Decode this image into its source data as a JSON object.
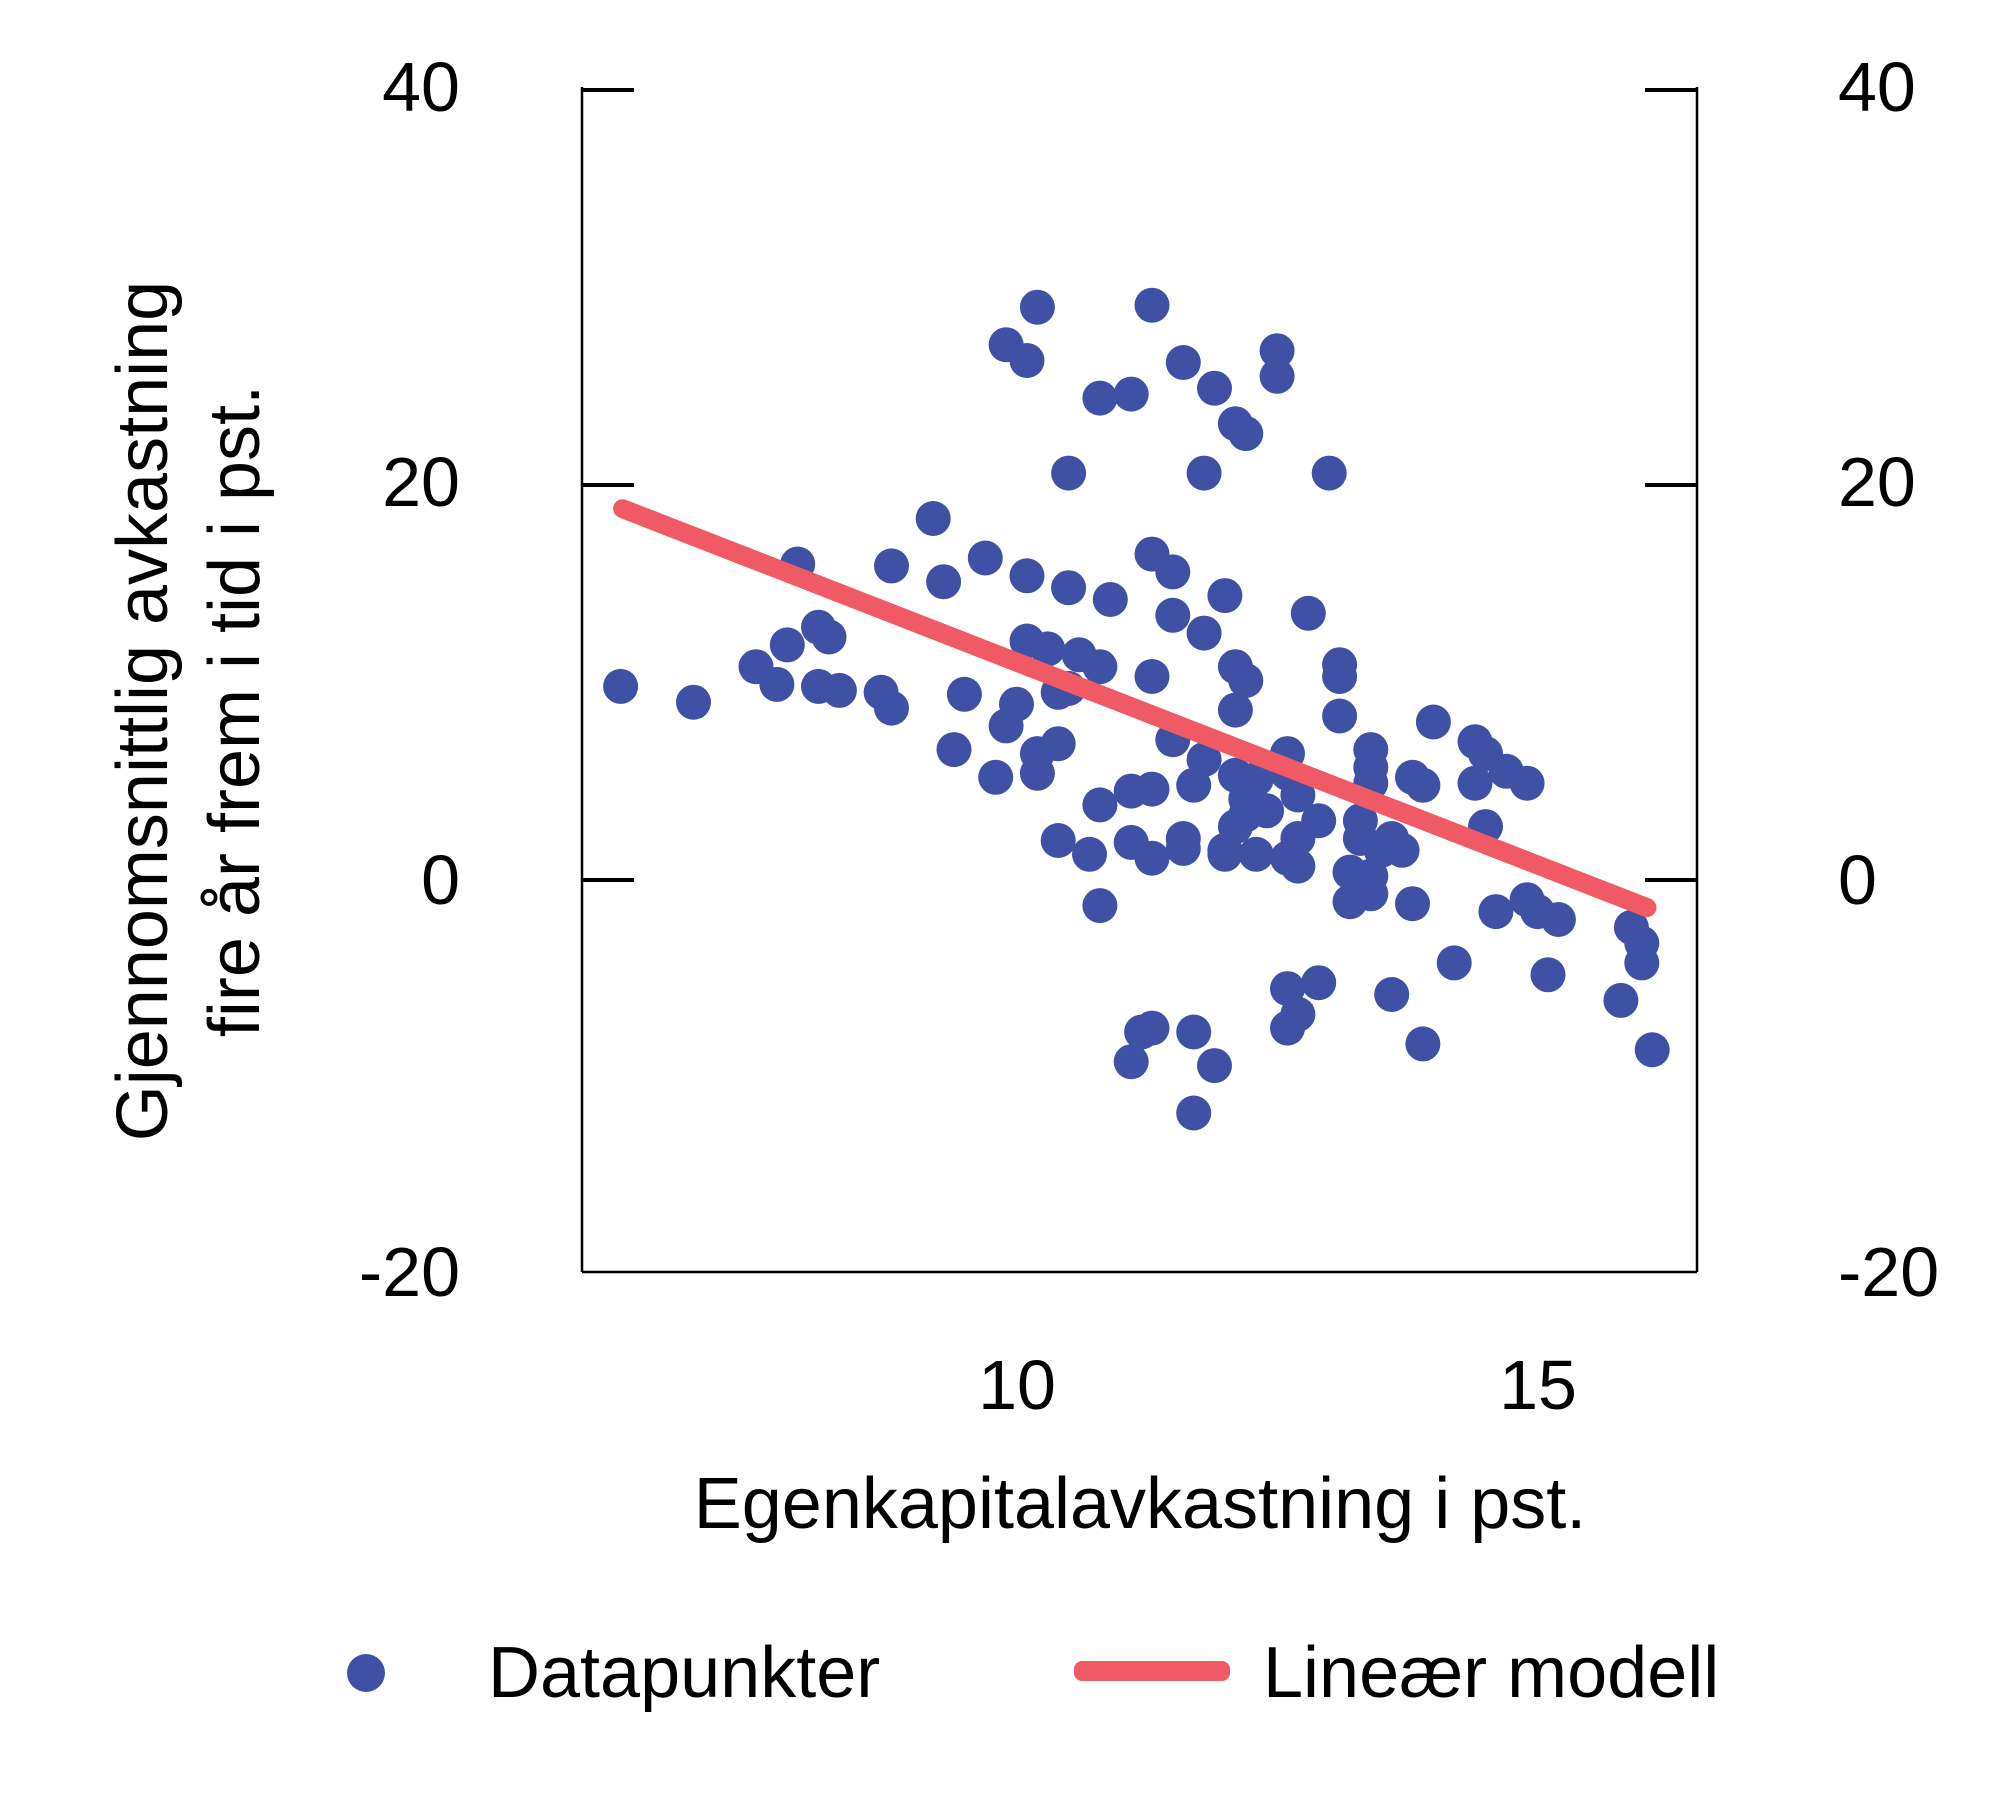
{
  "figure": {
    "x_axis_title": "Egenkapitalavkastning i pst.",
    "y_axis_title_line1": "Gjennomsnittlig avkastning",
    "y_axis_title_line2": "fire år frem i tid i pst."
  },
  "legend": {
    "datapoints_label": "Datapunkter",
    "model_label": "Lineær modell"
  },
  "colors": {
    "points": "#3F51A4",
    "line": "#EF5A65",
    "axis": "#000000"
  },
  "chart_data": {
    "type": "scatter",
    "title": "",
    "xlabel": "Egenkapitalavkastning i pst.",
    "ylabel": "Gjennomsnittlig avkastning fire år frem i tid i pst.",
    "xlim": [
      5.83,
      16.53
    ],
    "ylim": [
      -19.85,
      40.15
    ],
    "x_ticks": [
      10,
      15
    ],
    "y_ticks": [
      40,
      20,
      0,
      -20
    ],
    "y_tick_marks": [
      40,
      20,
      0
    ],
    "y_ticks_on_both_sides": true,
    "grid": false,
    "legend_position": "bottom",
    "series": [
      {
        "name": "Datapunkter",
        "type": "scatter",
        "color": "#3F51A4",
        "points": [
          [
            10.2,
            29.0
          ],
          [
            9.9,
            27.1
          ],
          [
            10.1,
            26.3
          ],
          [
            10.8,
            24.4
          ],
          [
            11.1,
            24.6
          ],
          [
            10.5,
            20.6
          ],
          [
            9.2,
            18.3
          ],
          [
            8.8,
            15.9
          ],
          [
            9.3,
            15.1
          ],
          [
            9.7,
            16.3
          ],
          [
            10.1,
            15.4
          ],
          [
            10.5,
            14.8
          ],
          [
            10.9,
            14.2
          ],
          [
            7.9,
            16.0
          ],
          [
            8.1,
            12.8
          ],
          [
            8.2,
            12.3
          ],
          [
            7.8,
            11.9
          ],
          [
            7.5,
            10.8
          ],
          [
            7.7,
            9.9
          ],
          [
            8.1,
            9.8
          ],
          [
            8.3,
            9.6
          ],
          [
            8.7,
            9.5
          ],
          [
            6.2,
            9.8
          ],
          [
            9.5,
            9.4
          ],
          [
            10.1,
            12.1
          ],
          [
            10.3,
            11.7
          ],
          [
            10.6,
            11.4
          ],
          [
            10.8,
            10.8
          ],
          [
            11.3,
            29.1
          ],
          [
            11.6,
            26.2
          ],
          [
            11.9,
            24.9
          ],
          [
            12.5,
            26.8
          ],
          [
            12.5,
            25.5
          ],
          [
            12.1,
            23.1
          ],
          [
            12.2,
            22.6
          ],
          [
            11.8,
            20.6
          ],
          [
            13.0,
            20.6
          ],
          [
            11.3,
            16.5
          ],
          [
            11.5,
            15.6
          ],
          [
            12.0,
            14.4
          ],
          [
            11.5,
            13.4
          ],
          [
            11.8,
            12.5
          ],
          [
            12.1,
            10.8
          ],
          [
            12.2,
            10.1
          ],
          [
            12.8,
            13.5
          ],
          [
            13.1,
            10.9
          ],
          [
            13.1,
            10.3
          ],
          [
            11.3,
            10.3
          ],
          [
            6.9,
            9.0
          ],
          [
            8.8,
            8.7
          ],
          [
            10.0,
            8.9
          ],
          [
            10.4,
            9.5
          ],
          [
            10.5,
            9.7
          ],
          [
            9.9,
            7.8
          ],
          [
            10.2,
            6.4
          ],
          [
            10.4,
            6.9
          ],
          [
            9.4,
            6.6
          ],
          [
            9.8,
            5.2
          ],
          [
            10.2,
            5.4
          ],
          [
            10.8,
            3.8
          ],
          [
            11.1,
            4.5
          ],
          [
            10.4,
            2.0
          ],
          [
            10.7,
            1.3
          ],
          [
            11.1,
            1.9
          ],
          [
            10.8,
            -1.3
          ],
          [
            11.2,
            -7.7
          ],
          [
            11.1,
            -9.2
          ],
          [
            11.5,
            7.1
          ],
          [
            11.8,
            6.1
          ],
          [
            12.1,
            8.6
          ],
          [
            11.7,
            4.8
          ],
          [
            11.3,
            4.6
          ],
          [
            11.3,
            1.1
          ],
          [
            11.6,
            2.1
          ],
          [
            11.6,
            1.6
          ],
          [
            12.1,
            5.3
          ],
          [
            12.2,
            4.1
          ],
          [
            12.3,
            5.1
          ],
          [
            12.2,
            3.3
          ],
          [
            12.4,
            3.5
          ],
          [
            12.1,
            2.7
          ],
          [
            12.0,
            1.5
          ],
          [
            12.3,
            1.3
          ],
          [
            12.0,
            1.3
          ],
          [
            12.6,
            6.4
          ],
          [
            12.6,
            5.4
          ],
          [
            12.7,
            4.3
          ],
          [
            12.7,
            2.1
          ],
          [
            12.9,
            3.0
          ],
          [
            12.6,
            1.1
          ],
          [
            12.7,
            0.7
          ],
          [
            13.1,
            8.3
          ],
          [
            13.4,
            6.6
          ],
          [
            13.4,
            5.7
          ],
          [
            13.4,
            4.9
          ],
          [
            13.3,
            3.0
          ],
          [
            13.3,
            2.1
          ],
          [
            13.5,
            1.5
          ],
          [
            13.2,
            0.4
          ],
          [
            13.4,
            0.2
          ],
          [
            13.2,
            -1.1
          ],
          [
            13.4,
            -0.7
          ],
          [
            13.6,
            2.1
          ],
          [
            13.7,
            1.5
          ],
          [
            13.8,
            5.2
          ],
          [
            13.9,
            4.8
          ],
          [
            13.8,
            -1.2
          ],
          [
            14.0,
            8.0
          ],
          [
            14.4,
            7.0
          ],
          [
            14.5,
            6.4
          ],
          [
            14.4,
            4.9
          ],
          [
            14.7,
            5.5
          ],
          [
            14.9,
            4.9
          ],
          [
            14.5,
            2.7
          ],
          [
            14.9,
            -1.0
          ],
          [
            14.6,
            -1.6
          ],
          [
            15.0,
            -1.6
          ],
          [
            15.2,
            -2.0
          ],
          [
            14.2,
            -4.2
          ],
          [
            15.1,
            -4.8
          ],
          [
            15.9,
            -2.4
          ],
          [
            16.0,
            -3.2
          ],
          [
            16.0,
            -4.2
          ],
          [
            15.8,
            -6.1
          ],
          [
            16.1,
            -8.6
          ],
          [
            12.6,
            -5.5
          ],
          [
            12.9,
            -5.2
          ],
          [
            12.7,
            -6.8
          ],
          [
            12.6,
            -7.5
          ],
          [
            13.6,
            -5.8
          ],
          [
            13.9,
            -8.3
          ],
          [
            11.7,
            -7.7
          ],
          [
            11.3,
            -7.5
          ],
          [
            11.9,
            -9.4
          ],
          [
            11.7,
            -11.8
          ]
        ]
      },
      {
        "name": "Lineær modell",
        "type": "line",
        "color": "#EF5A65",
        "points": [
          [
            6.22,
            18.8
          ],
          [
            16.05,
            -1.4
          ]
        ]
      }
    ]
  }
}
